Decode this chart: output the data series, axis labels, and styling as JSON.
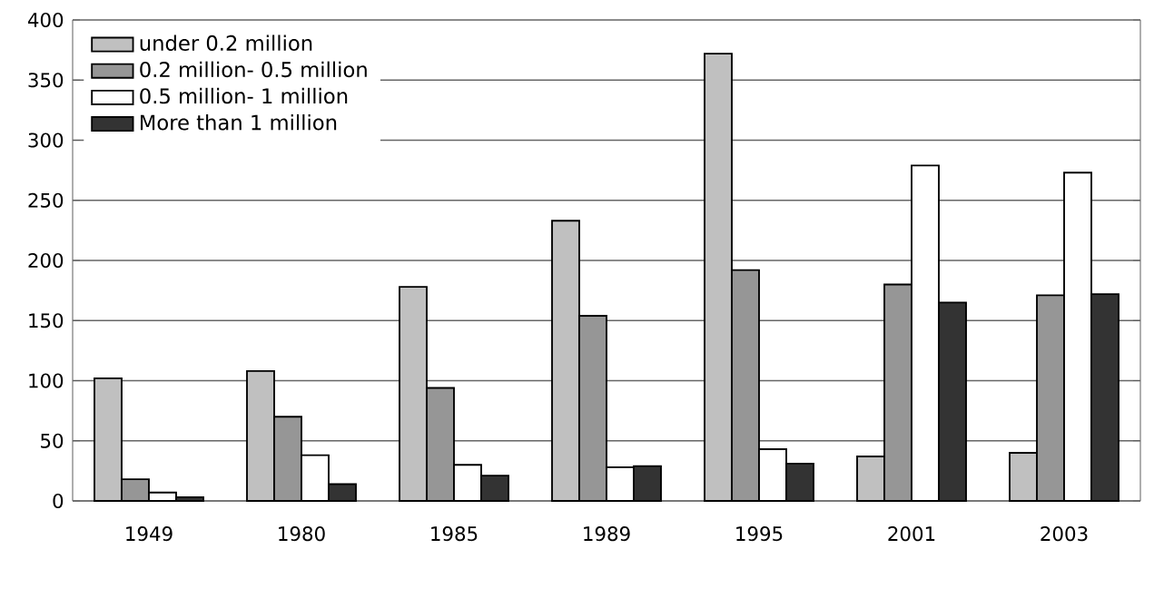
{
  "chart_data": {
    "type": "bar",
    "categories": [
      "1949",
      "1980",
      "1985",
      "1989",
      "1995",
      "2001",
      "2003"
    ],
    "series": [
      {
        "name": "under 0.2 million",
        "color": "#c0c0c0",
        "values": [
          102,
          108,
          178,
          233,
          372,
          37,
          40
        ]
      },
      {
        "name": "0.2 million- 0.5 million",
        "color": "#969696",
        "values": [
          18,
          70,
          94,
          154,
          192,
          180,
          171
        ]
      },
      {
        "name": "0.5 million- 1 million",
        "color": "#ffffff",
        "values": [
          7,
          38,
          30,
          28,
          43,
          279,
          273
        ]
      },
      {
        "name": "More than 1 million",
        "color": "#333333",
        "values": [
          3,
          14,
          21,
          29,
          31,
          165,
          172
        ]
      }
    ],
    "ylim": [
      0,
      400
    ],
    "yticks": [
      0,
      50,
      100,
      150,
      200,
      250,
      300,
      350,
      400
    ],
    "grid": "y",
    "legend": "top left"
  }
}
